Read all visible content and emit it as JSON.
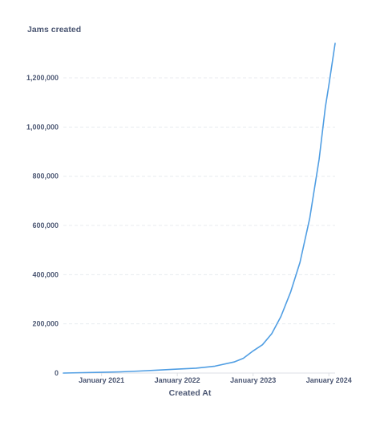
{
  "chart_data": {
    "type": "line",
    "ylabel": "Jams created",
    "xlabel": "Created At",
    "x_tick_labels": [
      "January 2021",
      "January 2022",
      "January 2023",
      "January 2024"
    ],
    "x_range": [
      "2020-07-01",
      "2024-01-31"
    ],
    "y_ticks": [
      0,
      200000,
      400000,
      600000,
      800000,
      1000000,
      1200000
    ],
    "y_tick_labels": [
      "0",
      "200,000",
      "400,000",
      "600,000",
      "800,000",
      "1,000,000",
      "1,200,000"
    ],
    "ylim": [
      0,
      1200000
    ],
    "grid": true,
    "line_color": "#509ee3",
    "series": [
      {
        "points": [
          {
            "x": "2020-07-01",
            "y": 0
          },
          {
            "x": "2020-10-01",
            "y": 1500
          },
          {
            "x": "2021-01-01",
            "y": 3000
          },
          {
            "x": "2021-04-01",
            "y": 5000
          },
          {
            "x": "2021-07-01",
            "y": 8000
          },
          {
            "x": "2021-10-01",
            "y": 12000
          },
          {
            "x": "2022-01-01",
            "y": 16000
          },
          {
            "x": "2022-04-01",
            "y": 20000
          },
          {
            "x": "2022-07-01",
            "y": 28000
          },
          {
            "x": "2022-10-01",
            "y": 45000
          },
          {
            "x": "2022-11-15",
            "y": 60000
          },
          {
            "x": "2023-01-01",
            "y": 90000
          },
          {
            "x": "2023-02-15",
            "y": 115000
          },
          {
            "x": "2023-04-01",
            "y": 160000
          },
          {
            "x": "2023-05-15",
            "y": 230000
          },
          {
            "x": "2023-07-01",
            "y": 330000
          },
          {
            "x": "2023-08-15",
            "y": 450000
          },
          {
            "x": "2023-10-01",
            "y": 630000
          },
          {
            "x": "2023-11-15",
            "y": 870000
          },
          {
            "x": "2023-12-15",
            "y": 1080000
          },
          {
            "x": "2024-01-01",
            "y": 1170000
          },
          {
            "x": "2024-01-31",
            "y": 1340000
          }
        ]
      }
    ]
  }
}
